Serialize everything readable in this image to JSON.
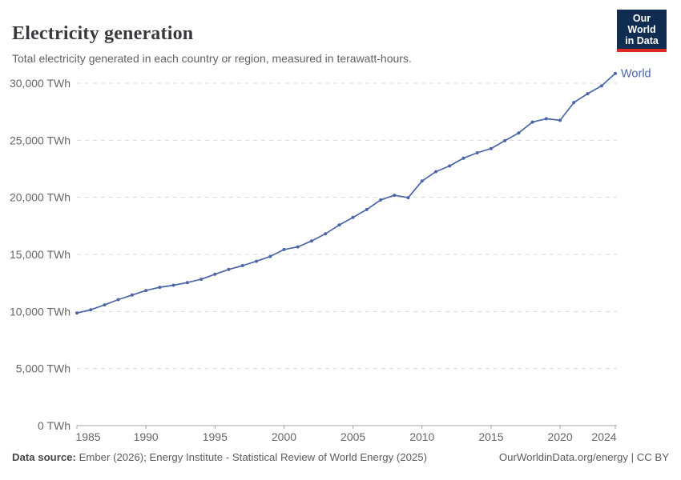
{
  "header": {
    "title": "Electricity generation",
    "subtitle": "Total electricity generated in each country or region, measured in terawatt-hours.",
    "logo": {
      "line1": "Our World",
      "line2": "in Data",
      "bg_color": "#102c50",
      "accent_color": "#dc2a20"
    }
  },
  "chart_data": {
    "type": "line",
    "title": "Electricity generation",
    "subtitle": "Total electricity generated in each country or region, measured in terawatt-hours.",
    "unit": "TWh",
    "x": [
      1985,
      1986,
      1987,
      1988,
      1989,
      1990,
      1991,
      1992,
      1993,
      1994,
      1995,
      1996,
      1997,
      1998,
      1999,
      2000,
      2001,
      2002,
      2003,
      2004,
      2005,
      2006,
      2007,
      2008,
      2009,
      2010,
      2011,
      2012,
      2013,
      2014,
      2015,
      2016,
      2017,
      2018,
      2019,
      2020,
      2021,
      2022,
      2023,
      2024
    ],
    "series": [
      {
        "name": "World",
        "color": "#4a66a8",
        "values": [
          9860,
          10150,
          10580,
          11040,
          11440,
          11840,
          12120,
          12300,
          12530,
          12820,
          13260,
          13680,
          14020,
          14400,
          14820,
          15430,
          15660,
          16180,
          16810,
          17570,
          18240,
          18930,
          19770,
          20180,
          19970,
          21430,
          22250,
          22750,
          23430,
          23900,
          24270,
          24960,
          25640,
          26590,
          26890,
          26750,
          28310,
          29080,
          29760,
          30860
        ]
      }
    ],
    "xlim": [
      1985,
      2024
    ],
    "ylim": [
      0,
      30000
    ],
    "x_ticks": [
      1985,
      1990,
      1995,
      2000,
      2005,
      2010,
      2015,
      2020,
      2024
    ],
    "y_ticks": [
      0,
      5000,
      10000,
      15000,
      20000,
      25000,
      30000
    ],
    "y_tick_labels": [
      "0 TWh",
      "5,000 TWh",
      "10,000 TWh",
      "15,000 TWh",
      "20,000 TWh",
      "25,000 TWh",
      "30,000 TWh"
    ],
    "grid": "horizontal-dashed",
    "legend": "line-end-label",
    "markers": true
  },
  "footer": {
    "source_label": "Data source:",
    "source_text": "Ember (2026); Energy Institute - Statistical Review of World Energy (2025)",
    "link_text": "OurWorldinData.org/energy | CC BY"
  }
}
